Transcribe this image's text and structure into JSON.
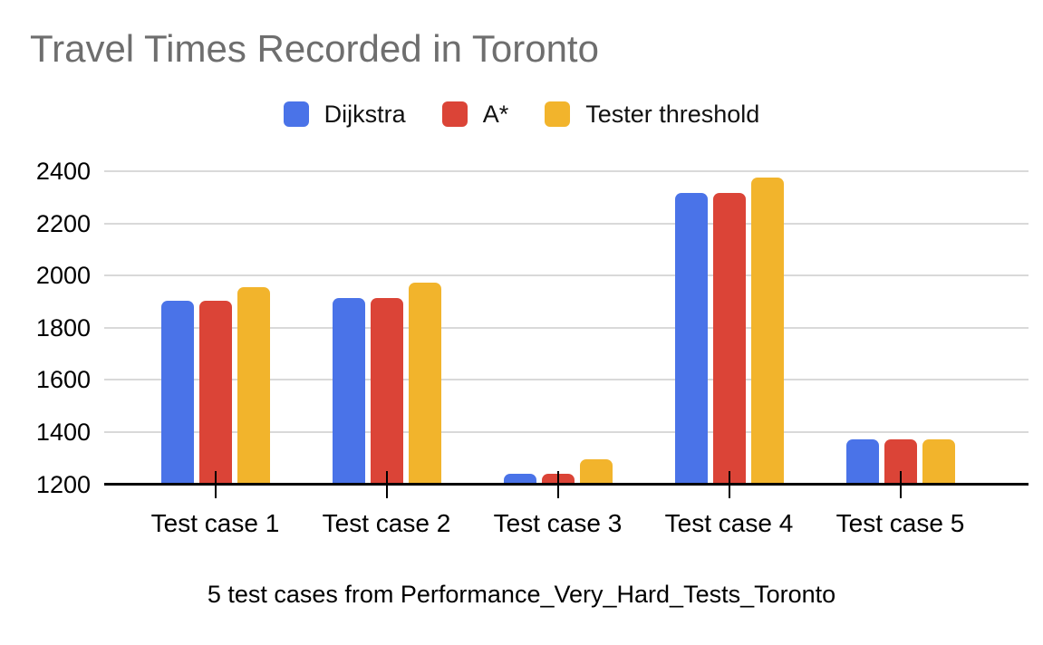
{
  "title": "Travel Times Recorded in Toronto",
  "caption": "5 test cases from Performance_Very_Hard_Tests_Toronto",
  "colors": {
    "series_dijkstra": "#4A73E8",
    "series_a_star": "#DB4437",
    "series_tester_threshold": "#F2B42C",
    "title_text": "#6E6E6E",
    "gridline": "#D9D9D9",
    "axis_line": "#000000",
    "background": "#FFFFFF"
  },
  "chart_data": {
    "type": "bar",
    "title": "Travel Times Recorded in Toronto",
    "xlabel": "5 test cases from Performance_Very_Hard_Tests_Toronto",
    "ylabel": "",
    "categories": [
      "Test case 1",
      "Test case 2",
      "Test case 3",
      "Test case 4",
      "Test case 5"
    ],
    "series": [
      {
        "name": "Dijkstra",
        "color": "#4A73E8",
        "values": [
          1907,
          1916,
          1242,
          2318,
          1374
        ]
      },
      {
        "name": "A*",
        "color": "#DB4437",
        "values": [
          1907,
          1916,
          1242,
          2318,
          1374
        ]
      },
      {
        "name": "Tester threshold",
        "color": "#F2B42C",
        "values": [
          1957,
          1975,
          1297,
          2377,
          1374
        ]
      }
    ],
    "ylim": [
      1200,
      2400
    ],
    "ytick_step": 200,
    "ytick_labels": [
      "1200",
      "1400",
      "1600",
      "1800",
      "2000",
      "2200",
      "2400"
    ],
    "grid": true,
    "legend_position": "top"
  }
}
